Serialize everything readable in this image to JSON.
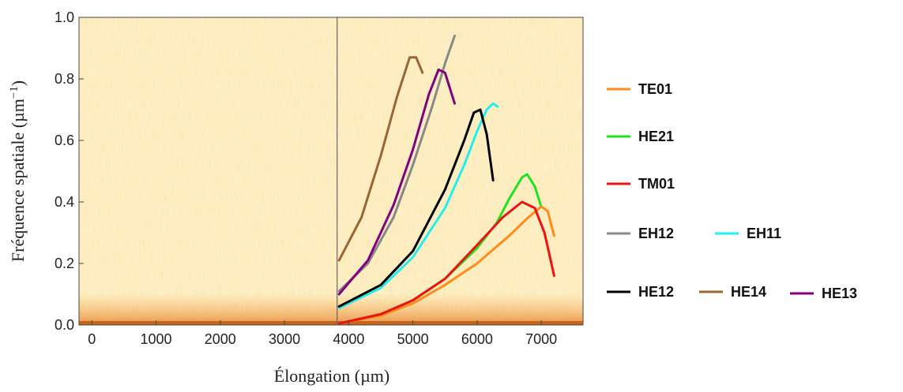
{
  "chart_data": {
    "type": "line",
    "xlabel": "Élongation (µm)",
    "ylabel": "Fréquence spatiale (µm",
    "ylabel_sup": "−1",
    "ylabel_end": ")",
    "xlim": [
      -200,
      7650
    ],
    "ylim": [
      0,
      1
    ],
    "xticks": [
      0,
      1000,
      2000,
      3000,
      4000,
      5000,
      6000,
      7000
    ],
    "yticks": [
      {
        "value": 0,
        "label": "0.0"
      },
      0.2,
      0.4,
      0.6,
      0.8,
      {
        "value": 1,
        "label": "1.0"
      }
    ],
    "vline": 3820,
    "series": [
      {
        "name": "TE01",
        "color": "#ff8c1a",
        "x": [
          3850,
          4500,
          5000,
          5500,
          6000,
          6500,
          6800,
          7000,
          7100,
          7200
        ],
        "values": [
          0.005,
          0.03,
          0.07,
          0.13,
          0.2,
          0.29,
          0.35,
          0.385,
          0.37,
          0.29
        ]
      },
      {
        "name": "HE21",
        "color": "#22e022",
        "x": [
          3850,
          4500,
          5000,
          5500,
          6000,
          6300,
          6500,
          6700,
          6780,
          6900,
          6990
        ],
        "values": [
          0.005,
          0.035,
          0.08,
          0.15,
          0.25,
          0.33,
          0.41,
          0.48,
          0.49,
          0.45,
          0.39
        ]
      },
      {
        "name": "TM01",
        "color": "#ee1111",
        "x": [
          3850,
          4500,
          5000,
          5500,
          6000,
          6400,
          6700,
          6900,
          7050,
          7200
        ],
        "values": [
          0.005,
          0.035,
          0.08,
          0.15,
          0.26,
          0.35,
          0.4,
          0.38,
          0.3,
          0.16
        ]
      },
      {
        "name": "EH12",
        "color": "#888888",
        "x": [
          3850,
          4300,
          4700,
          5000,
          5300,
          5500,
          5650
        ],
        "values": [
          0.11,
          0.2,
          0.35,
          0.52,
          0.71,
          0.85,
          0.94
        ]
      },
      {
        "name": "EH11",
        "color": "#22eeee",
        "x": [
          3850,
          4500,
          5000,
          5500,
          5800,
          6000,
          6150,
          6250,
          6320
        ],
        "values": [
          0.055,
          0.12,
          0.22,
          0.38,
          0.52,
          0.63,
          0.7,
          0.72,
          0.71
        ]
      },
      {
        "name": "HE12",
        "color": "#000000",
        "x": [
          3850,
          4500,
          5000,
          5500,
          5800,
          5950,
          6050,
          6150,
          6250
        ],
        "values": [
          0.06,
          0.13,
          0.24,
          0.44,
          0.6,
          0.69,
          0.7,
          0.62,
          0.47
        ]
      },
      {
        "name": "HE14",
        "color": "#996633",
        "x": [
          3850,
          4200,
          4500,
          4750,
          4950,
          5050,
          5150
        ],
        "values": [
          0.21,
          0.35,
          0.55,
          0.74,
          0.87,
          0.87,
          0.82
        ]
      },
      {
        "name": "HE13",
        "color": "#800080",
        "x": [
          3850,
          4300,
          4700,
          5000,
          5250,
          5400,
          5500,
          5650
        ],
        "values": [
          0.1,
          0.21,
          0.39,
          0.57,
          0.75,
          0.83,
          0.82,
          0.72
        ]
      }
    ]
  }
}
